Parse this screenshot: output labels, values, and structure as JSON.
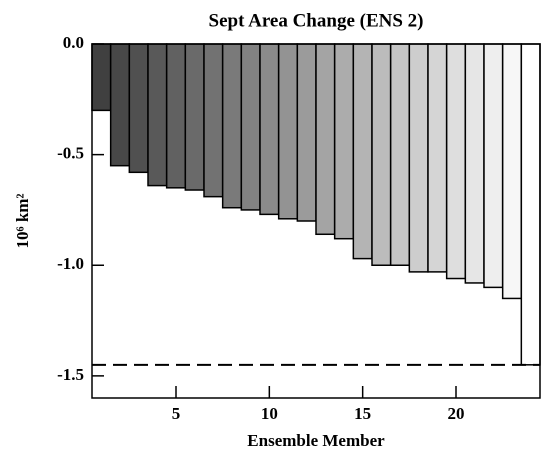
{
  "chart_data": {
    "type": "bar",
    "title": "Sept Area Change (ENS 2)",
    "x_label": "Ensemble Member",
    "y_label": "10⁶ km²",
    "x": [
      1,
      2,
      3,
      4,
      5,
      6,
      7,
      8,
      9,
      10,
      11,
      12,
      13,
      14,
      15,
      16,
      17,
      18,
      19,
      20,
      21,
      22,
      23,
      24
    ],
    "values": [
      -0.3,
      -0.55,
      -0.58,
      -0.64,
      -0.65,
      -0.66,
      -0.69,
      -0.74,
      -0.75,
      -0.77,
      -0.79,
      -0.8,
      -0.86,
      -0.88,
      -0.97,
      -1.0,
      -1.0,
      -1.03,
      -1.03,
      -1.06,
      -1.08,
      -1.1,
      -1.15,
      -1.45
    ],
    "colors": [
      "#404040",
      "#484848",
      "#505050",
      "#595959",
      "#616161",
      "#6a6a6a",
      "#727272",
      "#7a7a7a",
      "#828282",
      "#8b8b8b",
      "#939393",
      "#9b9b9b",
      "#a4a4a4",
      "#acacac",
      "#b4b4b4",
      "#bcbcbc",
      "#c5c5c5",
      "#cdcdcd",
      "#d5d5d5",
      "#dedede",
      "#e6e6e6",
      "#eeeeee",
      "#f7f7f7",
      "#ffffff"
    ],
    "reference_line": -1.45,
    "xlim": [
      0.5,
      24.5
    ],
    "xticks": [
      5,
      10,
      15,
      20
    ],
    "ylim": [
      -1.6,
      0
    ],
    "yticks": [
      {
        "value": 0,
        "label": "0.0"
      },
      -0.5,
      {
        "value": -1,
        "label": "-1.0"
      },
      -1.5
    ]
  }
}
